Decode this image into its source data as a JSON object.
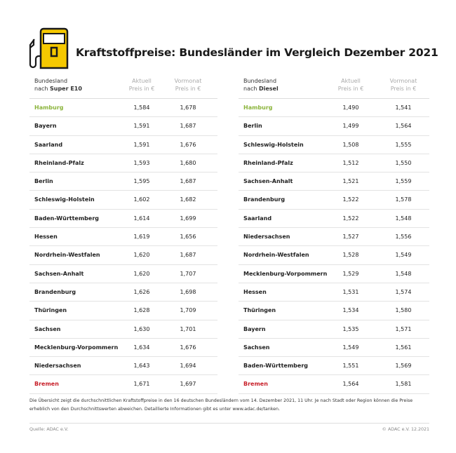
{
  "title": "Kraftstoffpreise: Bundesländer im Vergleich Dezember 2021",
  "colors": {
    "accent_yellow": "#f5c800",
    "best": "#8bb43b",
    "worst": "#c8202a"
  },
  "icon": "fuel-pump-icon",
  "left": {
    "h1a": "Bundesland",
    "h1b": "nach ",
    "h1c": "Super E10",
    "h2a": "Aktuell",
    "h2b": "Preis in €",
    "h3a": "Vormonat",
    "h3b": "Preis in €",
    "rows": [
      [
        "Hamburg",
        "1,584",
        "1,678"
      ],
      [
        "Bayern",
        "1,591",
        "1,687"
      ],
      [
        "Saarland",
        "1,591",
        "1,676"
      ],
      [
        "Rheinland-Pfalz",
        "1,593",
        "1,680"
      ],
      [
        "Berlin",
        "1,595",
        "1,687"
      ],
      [
        "Schleswig-Holstein",
        "1,602",
        "1,682"
      ],
      [
        "Baden-Württemberg",
        "1,614",
        "1,699"
      ],
      [
        "Hessen",
        "1,619",
        "1,656"
      ],
      [
        "Nordrhein-Westfalen",
        "1,620",
        "1,687"
      ],
      [
        "Sachsen-Anhalt",
        "1,620",
        "1,707"
      ],
      [
        "Brandenburg",
        "1,626",
        "1,698"
      ],
      [
        "Thüringen",
        "1,628",
        "1,709"
      ],
      [
        "Sachsen",
        "1,630",
        "1,701"
      ],
      [
        "Mecklenburg-Vorpommern",
        "1,634",
        "1,676"
      ],
      [
        "Niedersachsen",
        "1,643",
        "1,694"
      ],
      [
        "Bremen",
        "1,671",
        "1,697"
      ]
    ]
  },
  "right": {
    "h1a": "Bundesland",
    "h1b": "nach ",
    "h1c": "Diesel",
    "h2a": "Aktuell",
    "h2b": "Preis in €",
    "h3a": "Vormonat",
    "h3b": "Preis in €",
    "rows": [
      [
        "Hamburg",
        "1,490",
        "1,541"
      ],
      [
        "Berlin",
        "1,499",
        "1,564"
      ],
      [
        "Schleswig-Holstein",
        "1,508",
        "1,555"
      ],
      [
        "Rheinland-Pfalz",
        "1,512",
        "1,550"
      ],
      [
        "Sachsen-Anhalt",
        "1,521",
        "1,559"
      ],
      [
        "Brandenburg",
        "1,522",
        "1,578"
      ],
      [
        "Saarland",
        "1,522",
        "1,548"
      ],
      [
        "Niedersachsen",
        "1,527",
        "1,556"
      ],
      [
        "Nordrhein-Westfalen",
        "1,528",
        "1,549"
      ],
      [
        "Mecklenburg-Vorpommern",
        "1,529",
        "1,548"
      ],
      [
        "Hessen",
        "1,531",
        "1,574"
      ],
      [
        "Thüringen",
        "1,534",
        "1,580"
      ],
      [
        "Bayern",
        "1,535",
        "1,571"
      ],
      [
        "Sachsen",
        "1,549",
        "1,561"
      ],
      [
        "Baden-Württemberg",
        "1,551",
        "1,569"
      ],
      [
        "Bremen",
        "1,564",
        "1,581"
      ]
    ]
  },
  "note": "Die Übersicht zeigt die durchschnittlichen Kraftstoffpreise in den 16 deutschen Bundesländern vom 14. Dezember 2021, 11 Uhr. Je nach Stadt oder Region können die Preise erheblich von den Durchschnittswerten abweichen. Detaillierte Informationen gibt es unter www.adac.de/tanken.",
  "source": "Quelle: ADAC e.V.",
  "copyright": "© ADAC e.V. 12.2021"
}
